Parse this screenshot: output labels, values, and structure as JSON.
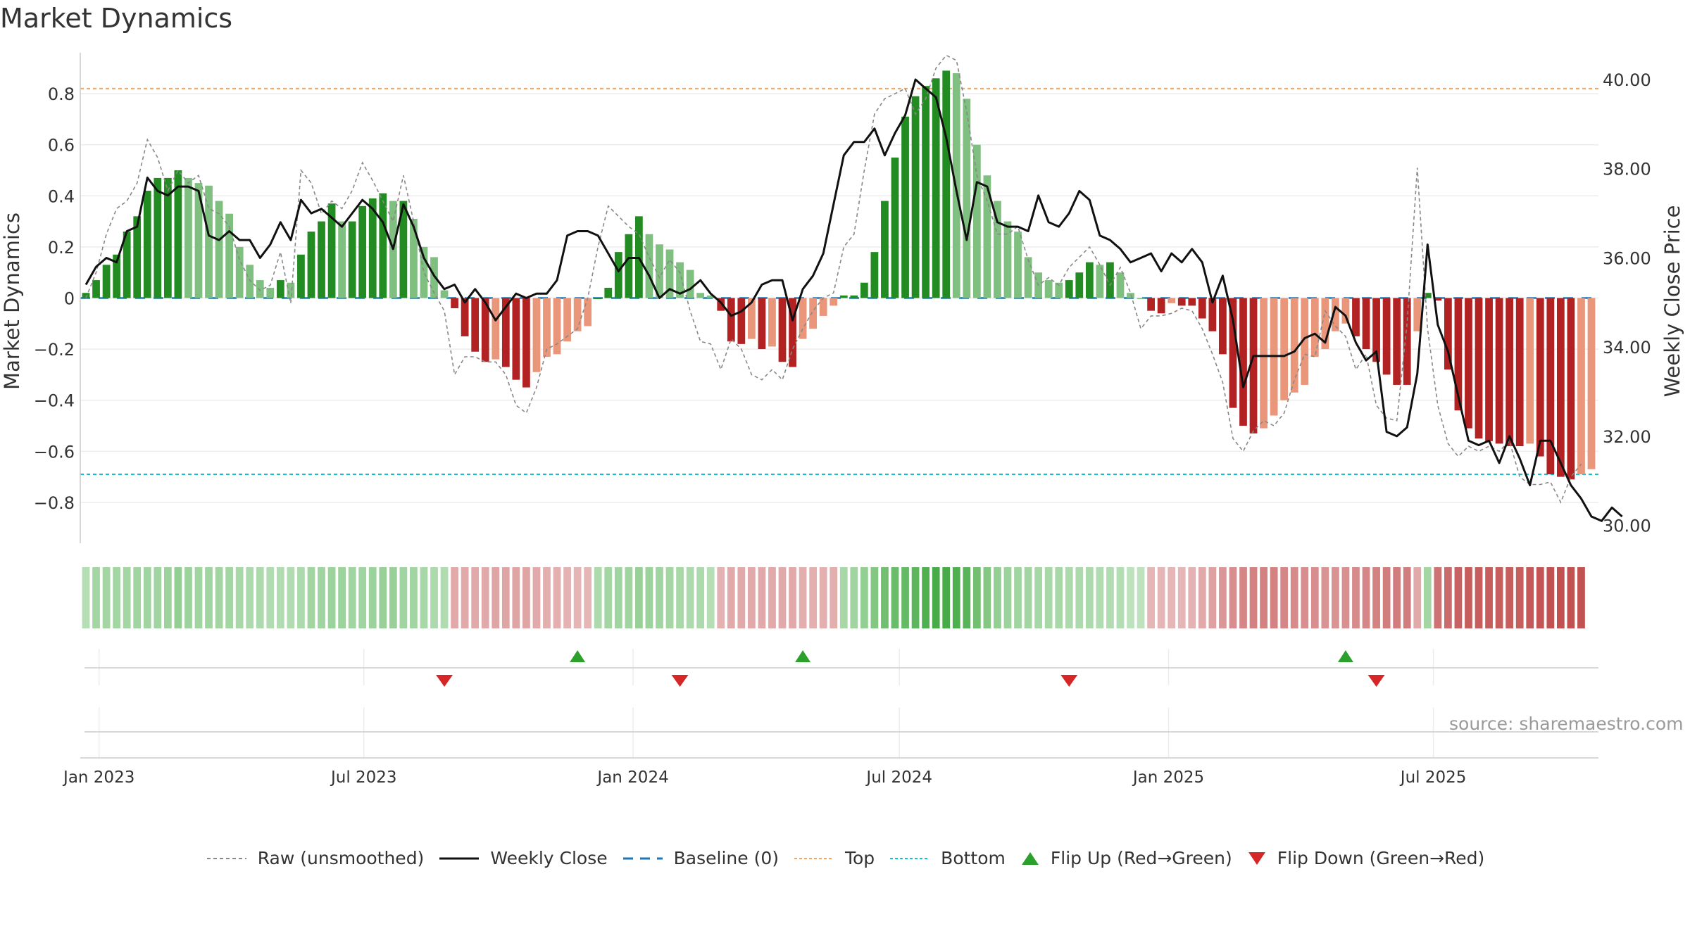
{
  "title": "Market Dynamics",
  "source": "source: sharemaestro.com",
  "legend": [
    {
      "key": "raw",
      "label": "Raw (unsmoothed)"
    },
    {
      "key": "close",
      "label": "Weekly Close"
    },
    {
      "key": "baseline",
      "label": "Baseline (0)"
    },
    {
      "key": "top",
      "label": "Top"
    },
    {
      "key": "bottom",
      "label": "Bottom"
    },
    {
      "key": "flip_up",
      "label": "Flip Up (Red→Green)"
    },
    {
      "key": "flip_down",
      "label": "Flip Down (Green→Red)"
    }
  ],
  "colors": {
    "raw": "#888888",
    "close": "#111111",
    "baseline": "#1f77b4",
    "top": "#f4a460",
    "bottom": "#17becf",
    "flip_up": "#2ca02c",
    "flip_down": "#d62728",
    "green_dark": "#228b22",
    "green_light": "#7fbf7f",
    "red_dark": "#b22222",
    "red_light": "#e9967a"
  },
  "chart_data": {
    "type": "bar",
    "y_label": "Market Dynamics",
    "y2_label": "Weekly Close Price",
    "y_ticks": [
      "0.8",
      "0.6",
      "0.4",
      "0.2",
      "0",
      "−0.2",
      "−0.4",
      "−0.6",
      "−0.8"
    ],
    "y_tick_values": [
      0.8,
      0.6,
      0.4,
      0.2,
      0,
      -0.2,
      -0.4,
      -0.6,
      -0.8
    ],
    "y2_ticks": [
      "40.00",
      "38.00",
      "36.00",
      "34.00",
      "32.00",
      "30.00"
    ],
    "y2_tick_values": [
      40,
      38,
      36,
      34,
      32,
      30
    ],
    "ylim": [
      -0.96,
      0.96
    ],
    "y2lim": [
      29.6,
      40.6
    ],
    "x_ticks": [
      "Jan 2023",
      "Jul 2023",
      "Jan 2024",
      "Jul 2024",
      "Jan 2025",
      "Jul 2025"
    ],
    "x_tick_dates": [
      "2023-01-01",
      "2023-07-01",
      "2024-01-01",
      "2024-07-01",
      "2025-01-01",
      "2025-07-01"
    ],
    "first_week": "2022-12-23",
    "top_level": 0.82,
    "bottom_level": -0.69,
    "baseline": 0,
    "dynamics": [
      0.02,
      0.07,
      0.13,
      0.17,
      0.26,
      0.32,
      0.42,
      0.47,
      0.47,
      0.5,
      0.47,
      0.45,
      0.44,
      0.38,
      0.33,
      0.2,
      0.13,
      0.07,
      0.04,
      0.07,
      0.06,
      0.17,
      0.26,
      0.3,
      0.37,
      0.3,
      0.3,
      0.36,
      0.39,
      0.41,
      0.38,
      0.38,
      0.31,
      0.2,
      0.16,
      0.03,
      -0.04,
      -0.15,
      -0.21,
      -0.25,
      -0.24,
      -0.27,
      -0.32,
      -0.35,
      -0.29,
      -0.23,
      -0.22,
      -0.17,
      -0.13,
      -0.11,
      0.0,
      0.04,
      0.18,
      0.25,
      0.32,
      0.25,
      0.21,
      0.19,
      0.14,
      0.11,
      0.02,
      0.01,
      -0.05,
      -0.17,
      -0.18,
      -0.16,
      -0.2,
      -0.19,
      -0.25,
      -0.27,
      -0.16,
      -0.12,
      -0.07,
      -0.03,
      0.01,
      0.01,
      0.06,
      0.18,
      0.38,
      0.55,
      0.71,
      0.79,
      0.83,
      0.86,
      0.89,
      0.88,
      0.78,
      0.6,
      0.48,
      0.38,
      0.3,
      0.26,
      0.16,
      0.1,
      0.07,
      0.06,
      0.07,
      0.1,
      0.14,
      0.13,
      0.14,
      0.1,
      0.02,
      0.0,
      -0.05,
      -0.06,
      -0.02,
      -0.03,
      -0.03,
      -0.08,
      -0.13,
      -0.22,
      -0.43,
      -0.5,
      -0.53,
      -0.51,
      -0.46,
      -0.4,
      -0.37,
      -0.34,
      -0.23,
      -0.2,
      -0.13,
      -0.1,
      -0.15,
      -0.2,
      -0.25,
      -0.3,
      -0.34,
      -0.34,
      -0.13,
      0.02,
      -0.01,
      -0.28,
      -0.44,
      -0.51,
      -0.55,
      -0.56,
      -0.57,
      -0.58,
      -0.58,
      -0.57,
      -0.62,
      -0.69,
      -0.7,
      -0.71,
      -0.69,
      -0.67
    ],
    "close": [
      35.4,
      35.8,
      36.0,
      35.9,
      36.6,
      36.7,
      37.8,
      37.5,
      37.4,
      37.6,
      37.6,
      37.5,
      36.5,
      36.4,
      36.6,
      36.4,
      36.4,
      36.0,
      36.3,
      36.8,
      36.4,
      37.3,
      37.0,
      37.1,
      36.9,
      36.7,
      37.0,
      37.3,
      37.1,
      36.8,
      36.2,
      37.2,
      36.7,
      36.0,
      35.6,
      35.3,
      35.4,
      35.0,
      35.3,
      35.0,
      34.6,
      34.9,
      35.2,
      35.1,
      35.2,
      35.2,
      35.5,
      36.5,
      36.6,
      36.6,
      36.5,
      36.1,
      35.7,
      36.0,
      36.0,
      35.6,
      35.1,
      35.3,
      35.2,
      35.3,
      35.5,
      35.2,
      35.0,
      34.7,
      34.8,
      35.0,
      35.4,
      35.5,
      35.5,
      34.6,
      35.3,
      35.6,
      36.1,
      37.2,
      38.3,
      38.6,
      38.6,
      38.9,
      38.3,
      38.8,
      39.2,
      40.0,
      39.8,
      39.6,
      38.7,
      37.5,
      36.4,
      37.7,
      37.6,
      36.8,
      36.7,
      36.7,
      36.6,
      37.4,
      36.8,
      36.7,
      37.0,
      37.5,
      37.3,
      36.5,
      36.4,
      36.2,
      35.9,
      36.0,
      36.1,
      35.7,
      36.1,
      35.9,
      36.2,
      35.9,
      35.0,
      35.6,
      34.6,
      33.1,
      33.8,
      33.8,
      33.8,
      33.8,
      33.9,
      34.2,
      34.3,
      34.1,
      34.9,
      34.7,
      34.1,
      33.7,
      33.9,
      32.1,
      32.0,
      32.2,
      33.4,
      36.3,
      34.5,
      33.9,
      32.9,
      31.9,
      31.8,
      31.9,
      31.4,
      32.0,
      31.5,
      30.9,
      31.9,
      31.9,
      31.4,
      30.9,
      30.6,
      30.2,
      30.1,
      30.4,
      30.2
    ],
    "raw": [
      0.0,
      0.1,
      0.25,
      0.35,
      0.38,
      0.45,
      0.62,
      0.55,
      0.42,
      0.5,
      0.45,
      0.48,
      0.35,
      0.33,
      0.28,
      0.15,
      0.07,
      0.03,
      0.05,
      0.18,
      -0.02,
      0.5,
      0.45,
      0.33,
      0.38,
      0.35,
      0.42,
      0.53,
      0.46,
      0.38,
      0.3,
      0.48,
      0.3,
      0.1,
      0.02,
      -0.05,
      -0.3,
      -0.23,
      -0.23,
      -0.25,
      -0.25,
      -0.3,
      -0.42,
      -0.45,
      -0.35,
      -0.2,
      -0.18,
      -0.15,
      -0.12,
      0.0,
      0.2,
      0.36,
      0.32,
      0.28,
      0.25,
      0.16,
      0.08,
      0.15,
      0.1,
      -0.05,
      -0.17,
      -0.18,
      -0.28,
      -0.16,
      -0.2,
      -0.3,
      -0.32,
      -0.28,
      -0.32,
      -0.2,
      -0.12,
      -0.05,
      0.0,
      0.02,
      0.2,
      0.25,
      0.5,
      0.72,
      0.78,
      0.8,
      0.82,
      0.72,
      0.78,
      0.9,
      0.95,
      0.93,
      0.73,
      0.48,
      0.38,
      0.25,
      0.25,
      0.28,
      0.15,
      0.05,
      0.08,
      0.05,
      0.12,
      0.16,
      0.2,
      0.13,
      0.05,
      0.12,
      0.02,
      -0.12,
      -0.07,
      -0.07,
      -0.06,
      -0.04,
      -0.05,
      -0.12,
      -0.22,
      -0.33,
      -0.55,
      -0.6,
      -0.52,
      -0.48,
      -0.5,
      -0.45,
      -0.32,
      -0.22,
      -0.23,
      -0.05,
      -0.11,
      -0.15,
      -0.28,
      -0.22,
      -0.42,
      -0.47,
      -0.48,
      -0.1,
      0.51,
      -0.12,
      -0.42,
      -0.57,
      -0.62,
      -0.58,
      -0.6,
      -0.58,
      -0.6,
      -0.56,
      -0.7,
      -0.73,
      -0.73,
      -0.72,
      -0.8,
      -0.7,
      -0.65
    ],
    "strip_levels": [
      0.25,
      0.35,
      0.35,
      0.35,
      0.35,
      0.38,
      0.38,
      0.38,
      0.4,
      0.45,
      0.4,
      0.38,
      0.38,
      0.36,
      0.35,
      0.33,
      0.3,
      0.3,
      0.28,
      0.28,
      0.28,
      0.3,
      0.36,
      0.38,
      0.4,
      0.4,
      0.38,
      0.38,
      0.4,
      0.42,
      0.42,
      0.38,
      0.36,
      0.33,
      0.3,
      0.28,
      0.3,
      0.3,
      0.3,
      0.3,
      0.32,
      0.32,
      0.32,
      0.32,
      0.3,
      0.28,
      0.26,
      0.25,
      0.24,
      0.22,
      0.3,
      0.35,
      0.38,
      0.38,
      0.42,
      0.4,
      0.38,
      0.35,
      0.33,
      0.3,
      0.3,
      0.25,
      0.25,
      0.3,
      0.3,
      0.3,
      0.3,
      0.3,
      0.3,
      0.3,
      0.28,
      0.26,
      0.26,
      0.28,
      0.32,
      0.38,
      0.45,
      0.55,
      0.65,
      0.7,
      0.72,
      0.78,
      0.85,
      0.9,
      0.9,
      0.86,
      0.8,
      0.65,
      0.55,
      0.45,
      0.4,
      0.38,
      0.36,
      0.34,
      0.33,
      0.32,
      0.3,
      0.3,
      0.3,
      0.28,
      0.27,
      0.26,
      0.2,
      0.2,
      0.22,
      0.22,
      0.22,
      0.22,
      0.25,
      0.3,
      0.35,
      0.4,
      0.45,
      0.5,
      0.52,
      0.52,
      0.52,
      0.5,
      0.48,
      0.45,
      0.45,
      0.42,
      0.42,
      0.44,
      0.48,
      0.5,
      0.52,
      0.55,
      0.55,
      0.55,
      0.3,
      0.35,
      0.6,
      0.65,
      0.7,
      0.72,
      0.72,
      0.72,
      0.72,
      0.72,
      0.72,
      0.75,
      0.78,
      0.8,
      0.8,
      0.8,
      0.8
    ],
    "flips_up": [
      "2023-11-24",
      "2024-04-26",
      "2025-05-02"
    ],
    "flips_down": [
      "2023-08-25",
      "2024-02-02",
      "2024-10-25",
      "2025-05-23"
    ]
  }
}
